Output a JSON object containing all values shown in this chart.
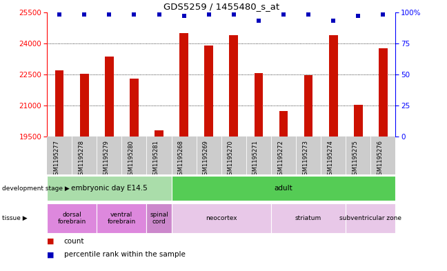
{
  "title": "GDS5259 / 1455480_s_at",
  "samples": [
    "GSM1195277",
    "GSM1195278",
    "GSM1195279",
    "GSM1195280",
    "GSM1195281",
    "GSM1195268",
    "GSM1195269",
    "GSM1195270",
    "GSM1195271",
    "GSM1195272",
    "GSM1195273",
    "GSM1195274",
    "GSM1195275",
    "GSM1195276"
  ],
  "counts": [
    22700,
    22550,
    23350,
    22300,
    19800,
    24480,
    23900,
    24380,
    22580,
    20750,
    22480,
    24380,
    21050,
    23750
  ],
  "percentile_ranks": [
    98,
    98,
    98,
    98,
    98,
    97,
    98,
    98,
    93,
    98,
    98,
    93,
    97,
    98
  ],
  "ylim_left": [
    19500,
    25500
  ],
  "ylim_right": [
    0,
    100
  ],
  "yticks_left": [
    19500,
    21000,
    22500,
    24000,
    25500
  ],
  "yticks_right": [
    0,
    25,
    50,
    75,
    100
  ],
  "bar_color": "#cc1100",
  "scatter_color": "#0000bb",
  "development_stages": [
    {
      "label": "embryonic day E14.5",
      "start": 0,
      "end": 5,
      "color": "#aaddaa"
    },
    {
      "label": "adult",
      "start": 5,
      "end": 14,
      "color": "#55cc55"
    }
  ],
  "tissues": [
    {
      "label": "dorsal\nforebrain",
      "start": 0,
      "end": 2,
      "color": "#dd88dd"
    },
    {
      "label": "ventral\nforebrain",
      "start": 2,
      "end": 4,
      "color": "#dd88dd"
    },
    {
      "label": "spinal\ncord",
      "start": 4,
      "end": 5,
      "color": "#cc88cc"
    },
    {
      "label": "neocortex",
      "start": 5,
      "end": 9,
      "color": "#e8c8e8"
    },
    {
      "label": "striatum",
      "start": 9,
      "end": 12,
      "color": "#e8c8e8"
    },
    {
      "label": "subventricular zone",
      "start": 12,
      "end": 14,
      "color": "#e8c8e8"
    }
  ]
}
